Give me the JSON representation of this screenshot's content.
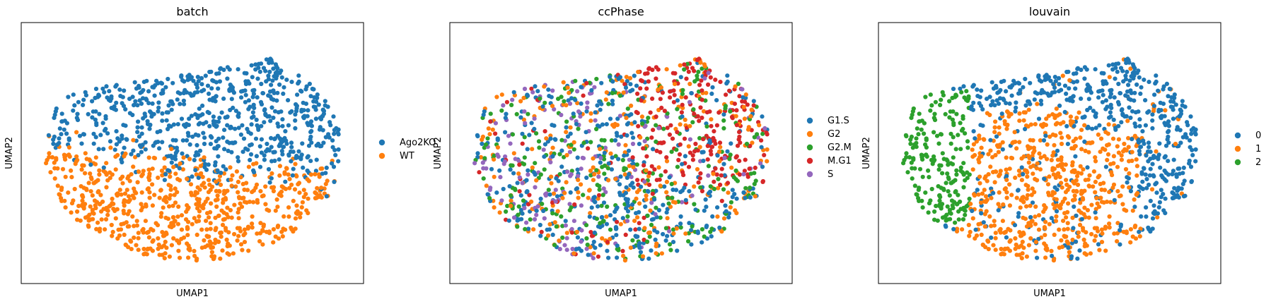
{
  "chart_data": [
    {
      "type": "scatter",
      "title": "batch",
      "xlabel": "UMAP1",
      "ylabel": "UMAP2",
      "grid": false,
      "legend": "right",
      "series": [
        {
          "name": "Ago2KO",
          "color": "#1f77b4"
        },
        {
          "name": "WT",
          "color": "#ff7f0e"
        }
      ],
      "points": {
        "count": 1350,
        "distribution": "Ago2KO upper region, WT lower region"
      }
    },
    {
      "type": "scatter",
      "title": "ccPhase",
      "xlabel": "UMAP1",
      "ylabel": "UMAP2",
      "grid": false,
      "legend": "right",
      "series": [
        {
          "name": "G1.S",
          "color": "#1f77b4"
        },
        {
          "name": "G2",
          "color": "#ff7f0e"
        },
        {
          "name": "G2.M",
          "color": "#2ca02c"
        },
        {
          "name": "M.G1",
          "color": "#d62728"
        },
        {
          "name": "S",
          "color": "#9467bd"
        }
      ],
      "points": {
        "count": 1350,
        "distribution": "mixed; M.G1 concentrated upper-right, S concentrated left"
      }
    },
    {
      "type": "scatter",
      "title": "louvain",
      "xlabel": "UMAP1",
      "ylabel": "UMAP2",
      "grid": false,
      "legend": "right",
      "series": [
        {
          "name": "0",
          "color": "#1f77b4"
        },
        {
          "name": "1",
          "color": "#ff7f0e"
        },
        {
          "name": "2",
          "color": "#2ca02c"
        }
      ],
      "points": {
        "count": 1350,
        "distribution": "cluster 2 left, cluster 1 center-lower, cluster 0 upper and right"
      }
    }
  ]
}
